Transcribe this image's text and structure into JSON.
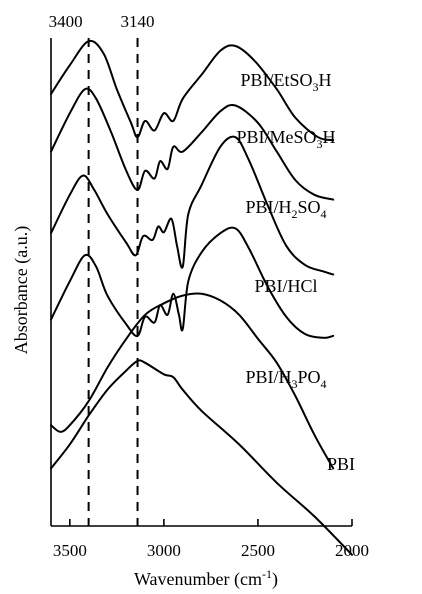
{
  "chart_data": {
    "type": "line",
    "xlabel": "Wavenumber (cm",
    "xlabel_sup": "-1",
    "xlabel_close": ")",
    "ylabel": "Absorbance (a.u.)",
    "xlim": [
      3600,
      2000
    ],
    "x_reversed": true,
    "y_ticks_shown": false,
    "grid": false,
    "x_ticks": [
      3500,
      3000,
      2500,
      2000
    ],
    "x_tick_labels": [
      "3500",
      "3000",
      "2500",
      "2000"
    ],
    "reference_lines": [
      {
        "x": 3400,
        "label": "3400",
        "style": "dashed"
      },
      {
        "x": 3140,
        "label": "3140",
        "style": "dashed"
      }
    ],
    "series": [
      {
        "name": "PBI/EtSO3H",
        "label_parts": [
          {
            "t": "PBI/EtSO"
          },
          {
            "t": "3",
            "sub": true
          },
          {
            "t": "H"
          }
        ],
        "points": [
          [
            3600,
            3.5
          ],
          [
            3500,
            3.8
          ],
          [
            3400,
            4.05
          ],
          [
            3320,
            3.92
          ],
          [
            3250,
            3.55
          ],
          [
            3175,
            3.2
          ],
          [
            3140,
            3.05
          ],
          [
            3100,
            3.22
          ],
          [
            3050,
            3.12
          ],
          [
            3000,
            3.3
          ],
          [
            2950,
            3.22
          ],
          [
            2900,
            3.45
          ],
          [
            2800,
            3.7
          ],
          [
            2700,
            3.95
          ],
          [
            2620,
            4.0
          ],
          [
            2520,
            3.85
          ],
          [
            2400,
            3.55
          ],
          [
            2300,
            3.25
          ],
          [
            2180,
            3.05
          ],
          [
            2100,
            3.02
          ]
        ]
      },
      {
        "name": "PBI/MeSO3H",
        "label_parts": [
          {
            "t": "PBI/MeSO"
          },
          {
            "t": "3",
            "sub": true
          },
          {
            "t": "H"
          }
        ],
        "points": [
          [
            3600,
            2.9
          ],
          [
            3500,
            3.3
          ],
          [
            3420,
            3.55
          ],
          [
            3360,
            3.45
          ],
          [
            3280,
            3.1
          ],
          [
            3200,
            2.7
          ],
          [
            3140,
            2.5
          ],
          [
            3100,
            2.7
          ],
          [
            3050,
            2.62
          ],
          [
            3020,
            2.8
          ],
          [
            2980,
            2.72
          ],
          [
            2950,
            2.95
          ],
          [
            2900,
            2.9
          ],
          [
            2800,
            3.1
          ],
          [
            2700,
            3.32
          ],
          [
            2620,
            3.38
          ],
          [
            2500,
            3.2
          ],
          [
            2400,
            2.9
          ],
          [
            2300,
            2.6
          ],
          [
            2200,
            2.45
          ],
          [
            2100,
            2.4
          ]
        ]
      },
      {
        "name": "PBI/H2SO4",
        "label_parts": [
          {
            "t": "PBI/H"
          },
          {
            "t": "2",
            "sub": true
          },
          {
            "t": "SO"
          },
          {
            "t": "4",
            "sub": true
          }
        ],
        "points": [
          [
            3600,
            2.05
          ],
          [
            3500,
            2.45
          ],
          [
            3430,
            2.65
          ],
          [
            3370,
            2.5
          ],
          [
            3300,
            2.25
          ],
          [
            3200,
            1.95
          ],
          [
            3150,
            1.82
          ],
          [
            3110,
            2.02
          ],
          [
            3060,
            1.98
          ],
          [
            3030,
            2.12
          ],
          [
            3000,
            2.06
          ],
          [
            2960,
            2.2
          ],
          [
            2930,
            1.92
          ],
          [
            2900,
            1.7
          ],
          [
            2870,
            2.25
          ],
          [
            2800,
            2.55
          ],
          [
            2700,
            2.95
          ],
          [
            2620,
            3.05
          ],
          [
            2550,
            2.82
          ],
          [
            2450,
            2.35
          ],
          [
            2350,
            1.92
          ],
          [
            2250,
            1.72
          ],
          [
            2150,
            1.65
          ],
          [
            2100,
            1.62
          ]
        ]
      },
      {
        "name": "PBI/HCl",
        "label_parts": [
          {
            "t": "PBI/HCl"
          }
        ],
        "points": [
          [
            3600,
            1.15
          ],
          [
            3500,
            1.55
          ],
          [
            3420,
            1.82
          ],
          [
            3360,
            1.7
          ],
          [
            3300,
            1.4
          ],
          [
            3200,
            1.1
          ],
          [
            3140,
            0.98
          ],
          [
            3100,
            1.18
          ],
          [
            3050,
            1.12
          ],
          [
            3020,
            1.3
          ],
          [
            2980,
            1.2
          ],
          [
            2950,
            1.42
          ],
          [
            2920,
            1.2
          ],
          [
            2900,
            1.05
          ],
          [
            2870,
            1.55
          ],
          [
            2800,
            1.85
          ],
          [
            2700,
            2.05
          ],
          [
            2620,
            2.1
          ],
          [
            2550,
            1.9
          ],
          [
            2450,
            1.5
          ],
          [
            2350,
            1.18
          ],
          [
            2250,
            1.0
          ],
          [
            2150,
            0.96
          ],
          [
            2100,
            0.98
          ]
        ]
      },
      {
        "name": "PBI/H3PO4",
        "label_parts": [
          {
            "t": "PBI/H"
          },
          {
            "t": "3",
            "sub": true
          },
          {
            "t": "PO"
          },
          {
            "t": "4",
            "sub": true
          }
        ],
        "points": [
          [
            3600,
            0.05
          ],
          [
            3550,
            -0.02
          ],
          [
            3500,
            0.05
          ],
          [
            3400,
            0.3
          ],
          [
            3300,
            0.65
          ],
          [
            3200,
            0.95
          ],
          [
            3100,
            1.2
          ],
          [
            3000,
            1.32
          ],
          [
            2900,
            1.4
          ],
          [
            2800,
            1.42
          ],
          [
            2700,
            1.35
          ],
          [
            2600,
            1.2
          ],
          [
            2500,
            0.95
          ],
          [
            2400,
            0.7
          ],
          [
            2300,
            0.35
          ],
          [
            2200,
            -0.05
          ],
          [
            2100,
            -0.4
          ]
        ]
      },
      {
        "name": "PBI",
        "label_parts": [
          {
            "t": "PBI"
          }
        ],
        "points": [
          [
            3600,
            -0.4
          ],
          [
            3500,
            -0.15
          ],
          [
            3400,
            0.15
          ],
          [
            3300,
            0.42
          ],
          [
            3200,
            0.62
          ],
          [
            3140,
            0.72
          ],
          [
            3100,
            0.7
          ],
          [
            3000,
            0.58
          ],
          [
            2950,
            0.55
          ],
          [
            2900,
            0.42
          ],
          [
            2800,
            0.2
          ],
          [
            2600,
            -0.15
          ],
          [
            2400,
            -0.55
          ],
          [
            2200,
            -0.9
          ],
          [
            2000,
            -1.3
          ]
        ]
      }
    ]
  }
}
